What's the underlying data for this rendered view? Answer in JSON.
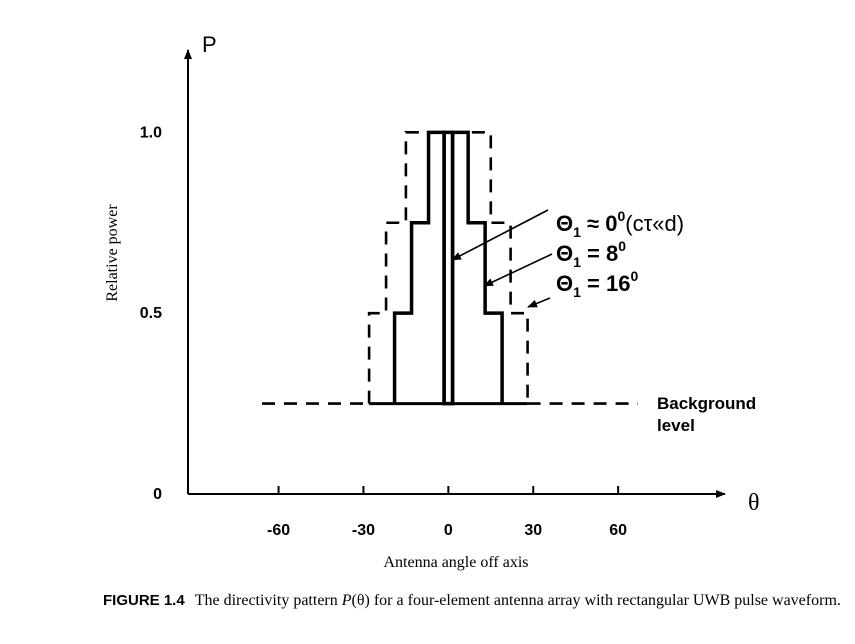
{
  "chart_data": {
    "type": "line",
    "title": "",
    "xlabel": "Antenna angle off axis",
    "ylabel": "Relative power",
    "y_axis_symbol": "P",
    "x_axis_symbol": "θ",
    "xlim": [
      -92,
      96
    ],
    "ylim": [
      0,
      1.2
    ],
    "x_ticks": [
      -60,
      -30,
      0,
      30,
      60
    ],
    "x_tick_labels": [
      "-60",
      "-30",
      "0",
      "30",
      "60"
    ],
    "y_ticks": [
      0,
      0.5,
      1.0
    ],
    "y_tick_labels": [
      "0",
      "0.5",
      "1.0"
    ],
    "background_level": 0.25,
    "background_label": [
      "Background",
      "level"
    ],
    "series": [
      {
        "label_main": "Θ",
        "label_sub": "1",
        "label_rest": " ≈ 0",
        "label_sup": "0",
        "label_tail": "(cτ«d)",
        "style": "solid",
        "x": [
          -1.5,
          -1.5,
          1.5,
          1.5
        ],
        "y": [
          0.25,
          1.0,
          1.0,
          0.25
        ]
      },
      {
        "label_main": "Θ",
        "label_sub": "1",
        "label_rest": " = 8",
        "label_sup": "0",
        "label_tail": "",
        "style": "solid",
        "x": [
          -19,
          -19,
          -13,
          -13,
          -7,
          -7,
          -1.5,
          -1.5,
          1.5,
          1.5,
          7,
          7,
          13,
          13,
          19,
          19
        ],
        "y": [
          0.25,
          0.5,
          0.5,
          0.75,
          0.75,
          1.0,
          1.0,
          0.25,
          0.25,
          1.0,
          1.0,
          0.75,
          0.75,
          0.5,
          0.5,
          0.25
        ]
      },
      {
        "label_main": "Θ",
        "label_sub": "1",
        "label_rest": " = 16",
        "label_sup": "0",
        "label_tail": "",
        "style": "dashed",
        "x": [
          -28,
          -28,
          -22,
          -22,
          -15,
          -15,
          15,
          15,
          22,
          22,
          28,
          28
        ],
        "y": [
          0.25,
          0.5,
          0.5,
          0.75,
          0.75,
          1.0,
          1.0,
          0.75,
          0.75,
          0.5,
          0.5,
          0.25
        ]
      }
    ],
    "grid": false,
    "legend": "annotations with arrows, right of center"
  },
  "caption": {
    "label": "FIGURE 1.4",
    "text_before": "The directivity pattern ",
    "symbol": "P",
    "text_after": "(θ) for a four-element antenna array with rectangular UWB pulse waveform."
  }
}
